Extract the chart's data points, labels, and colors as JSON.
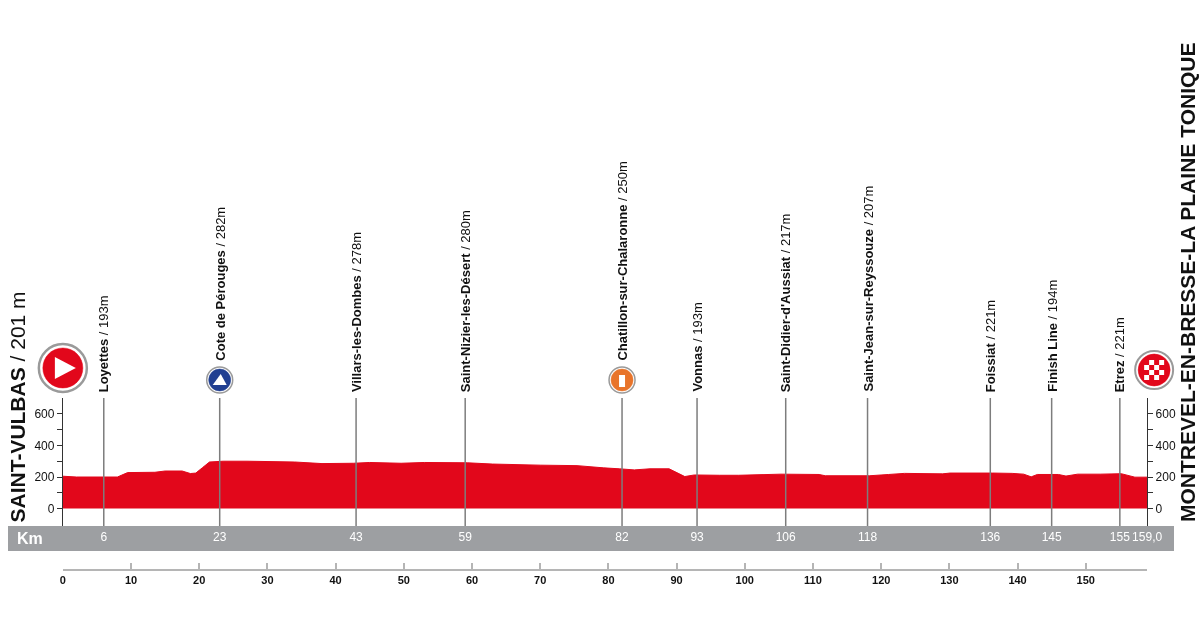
{
  "chart_data": {
    "type": "area",
    "ylabel": "SAINT-VULBAS / 201 m",
    "y2label": "MONTREVEL-EN-BRESSE-LA PLAINE TONIQUE",
    "x2label": "Km",
    "x": [
      0,
      2,
      8,
      9.5,
      13.5,
      15,
      17.5,
      18.7,
      19.5,
      20.5,
      21.5,
      23.5,
      27,
      34,
      38,
      42.6,
      45,
      49.6,
      53,
      59.3,
      63,
      70,
      75.4,
      79.3,
      81.6,
      83.8,
      86.1,
      88.9,
      91.2,
      92.6,
      96.3,
      99.1,
      105.3,
      110.9,
      111.8,
      118.3,
      121.1,
      123.4,
      129,
      130.1,
      136.3,
      139.2,
      140.9,
      142,
      142.9,
      146,
      147.1,
      148.8,
      152.1,
      155.2,
      157.2,
      159
    ],
    "values": [
      205,
      200,
      200,
      228,
      230,
      238,
      238,
      222,
      225,
      260,
      295,
      300,
      300,
      295,
      285,
      287,
      292,
      287,
      292,
      290,
      282,
      275,
      272,
      258,
      252,
      245,
      252,
      252,
      203,
      213,
      211,
      211,
      218,
      216,
      208,
      208,
      216,
      223,
      220,
      225,
      225,
      223,
      218,
      201,
      216,
      216,
      206,
      218,
      218,
      221,
      199,
      199
    ],
    "color": "#e2071b",
    "xlim": [
      0,
      159
    ],
    "xticks": [
      0,
      10,
      20,
      30,
      40,
      50,
      60,
      70,
      80,
      90,
      100,
      110,
      120,
      130,
      140,
      150
    ],
    "x2lim": [
      -8,
      163
    ],
    "x2ticks": [
      6,
      23,
      43,
      59,
      82,
      93,
      106,
      118,
      136,
      145,
      155,
      {
        "value": 159,
        "label": "159,0"
      }
    ],
    "ylim": [
      -110,
      700
    ],
    "yticks": [
      0,
      {
        "value": 100,
        "label": null
      },
      200,
      {
        "value": 300,
        "label": null
      },
      400,
      {
        "value": 500,
        "label": null
      },
      600
    ],
    "y2lim": [
      -110,
      700
    ],
    "y2ticks": [
      0,
      {
        "value": 100,
        "label": null
      },
      200,
      {
        "value": 300,
        "label": null
      },
      400,
      {
        "value": 500,
        "label": null
      },
      600
    ],
    "ref_lines": [
      {
        "axis": "x",
        "value": 6,
        "label": "Loyettes / 193m",
        "color": "#7d7d7d"
      },
      {
        "axis": "x",
        "value": 23,
        "label": "Cote de Pérouges / 282m",
        "color": "#7d7d7d"
      },
      {
        "axis": "x",
        "value": 43,
        "label": "Villars-les-Dombes / 278m",
        "color": "#7d7d7d"
      },
      {
        "axis": "x",
        "value": 59,
        "label": "Saint-Nizier-les-Désert / 280m",
        "color": "#7d7d7d"
      },
      {
        "axis": "x",
        "value": 82,
        "label": "Chatillon-sur-Chalaronne / 250m",
        "color": "#7d7d7d"
      },
      {
        "axis": "x",
        "value": 93,
        "label": "Vonnas / 193m",
        "color": "#7d7d7d"
      },
      {
        "axis": "x",
        "value": 106,
        "label": "Saint-Didier-d'Aussiat / 217m",
        "color": "#7d7d7d"
      },
      {
        "axis": "x",
        "value": 118,
        "label": "Saint-Jean-sur-Reyssouze / 207m",
        "color": "#7d7d7d"
      },
      {
        "axis": "x",
        "value": 136,
        "label": "Foissiat / 221m",
        "color": "#7d7d7d"
      },
      {
        "axis": "x",
        "value": 145,
        "label": "Finish Line / 194m",
        "color": "#7d7d7d"
      },
      {
        "axis": "x",
        "value": 155,
        "label": "Etrez / 221m",
        "color": "#7d7d7d"
      }
    ]
  }
}
